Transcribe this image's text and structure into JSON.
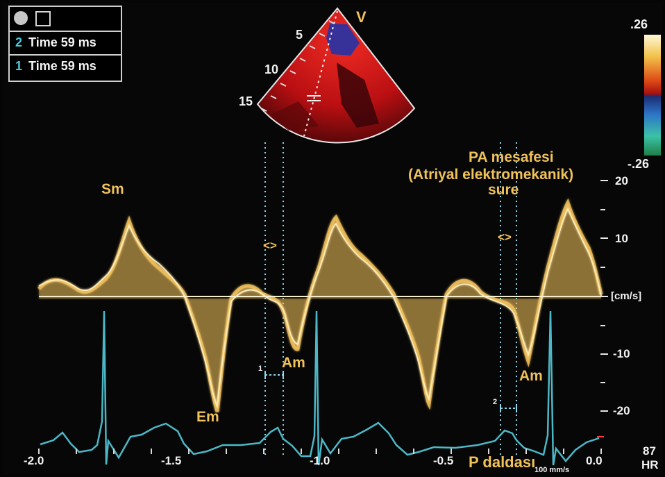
{
  "panel": {
    "rows": [
      {
        "num": "2",
        "label": "Time 59 ms"
      },
      {
        "num": "1",
        "label": "Time 59 ms"
      }
    ],
    "button_icons": [
      "circle-button-icon",
      "document-icon"
    ]
  },
  "sector": {
    "depth_marks": [
      "5",
      "10",
      "15"
    ],
    "view_label": "V"
  },
  "color_scale": {
    "top": ".26",
    "bottom": "-.26",
    "colors": [
      "#fff8d8",
      "#f2c24a",
      "#de4a16",
      "#a40f10",
      "#1b2d72",
      "#2d75c7",
      "#3cc2a7",
      "#1f7f49"
    ]
  },
  "annotations": {
    "sm": "Sm",
    "em": "Em",
    "am_left": "Am",
    "am_right": "Am",
    "pa_line1": "PA mesafesi",
    "pa_line2": "(Atriyal elektromekanik)",
    "pa_line3": "sure",
    "p_daldasi": "P daldası",
    "marker_left": "<>",
    "marker_right": "<>",
    "caliper_1": "1",
    "caliper_2": "2"
  },
  "scale": {
    "y_labels": [
      "20",
      "10",
      "[cm/s]",
      "-10",
      "-20"
    ],
    "x_labels": [
      "-2.0",
      "-1.5",
      "-1.0",
      "-0.5",
      "0.0"
    ],
    "speed": "100 mm/s",
    "hr_value": "87",
    "hr_label": "HR"
  },
  "colors": {
    "doppler": "#f1c05a",
    "ecg": "#4cb8c7",
    "baseline": "#f5efcf",
    "text": "#f0c25a"
  }
}
